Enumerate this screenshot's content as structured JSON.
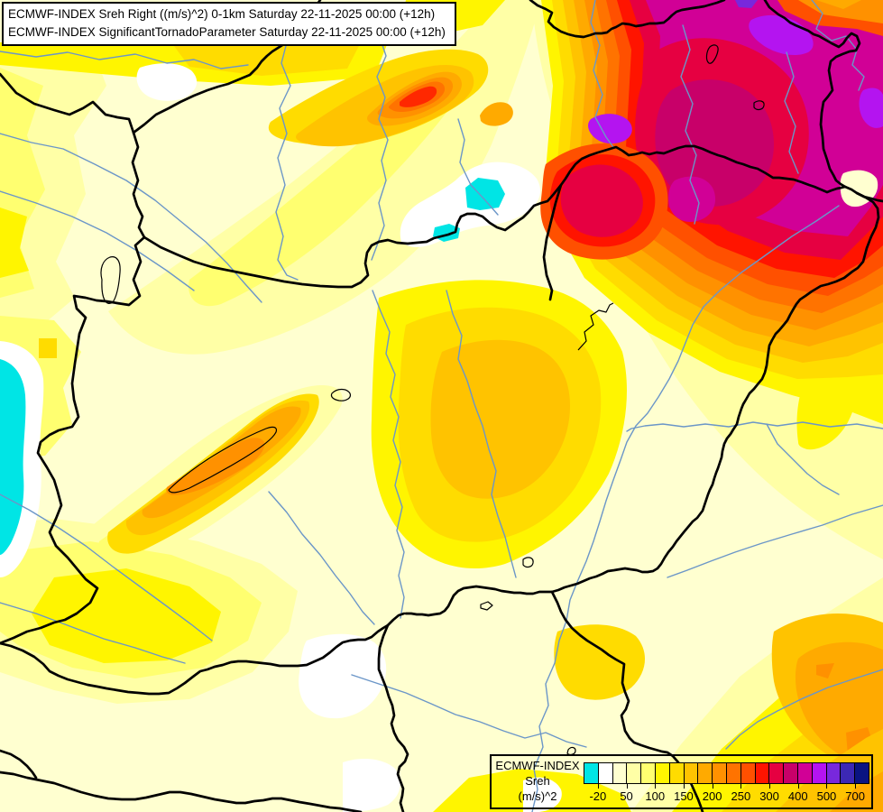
{
  "title_box": {
    "line1": "ECMWF-INDEX Sreh Right ((m/s)^2) 0-1km Saturday 22-11-2025 00:00 (+12h)",
    "line2": "ECMWF-INDEX SignificantTornadoParameter Saturday 22-11-2025 00:00 (+12h)"
  },
  "legend": {
    "title": "ECMWF-INDEX",
    "parameter": "Sreh",
    "units": "(m/s)^2",
    "tick_labels": [
      "-20",
      "50",
      "100",
      "150",
      "200",
      "250",
      "300",
      "400",
      "500",
      "700"
    ],
    "colors": [
      "#00E5E5",
      "#FFFFFF",
      "#FFFFD0",
      "#FFFFA6",
      "#FFFF70",
      "#FFF500",
      "#FFDC00",
      "#FFC300",
      "#FFAA00",
      "#FF9100",
      "#FF7300",
      "#FF5000",
      "#FF1400",
      "#E60041",
      "#C80069",
      "#D10096",
      "#B414F0",
      "#7828DC",
      "#3C28B4",
      "#0A1482"
    ]
  },
  "map": {
    "background_color": "#FFFFD0",
    "border_color": "#000000",
    "river_color": "#6B96C8",
    "negative_area_color": "#00E5E5"
  }
}
